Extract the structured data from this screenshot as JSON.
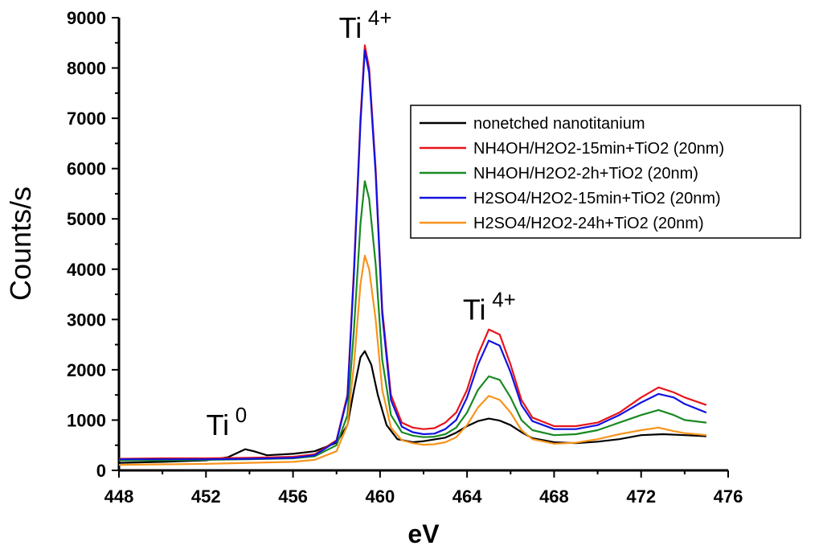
{
  "chart_data": {
    "type": "line",
    "title": "",
    "xlabel": "eV",
    "ylabel": "Counts/s",
    "xlim": [
      448,
      476
    ],
    "ylim": [
      0,
      9000
    ],
    "xticks": [
      448,
      452,
      456,
      460,
      464,
      468,
      472,
      476
    ],
    "yticks": [
      0,
      1000,
      2000,
      3000,
      4000,
      5000,
      6000,
      7000,
      8000,
      9000
    ],
    "legend_position": "top-right",
    "annotations": [
      {
        "id": "ti0",
        "base": "Ti",
        "sup": "0",
        "x": 453.2,
        "y": 700
      },
      {
        "id": "ti4-main",
        "base": "Ti",
        "sup": "4+",
        "x": 459.3,
        "y": 8600
      },
      {
        "id": "ti4-sat",
        "base": "Ti",
        "sup": "4+",
        "x": 465.0,
        "y": 3000
      }
    ],
    "series": [
      {
        "name": "nonetched nanotitanium",
        "color": "#000000",
        "x": [
          448,
          450,
          452,
          453,
          453.8,
          454.2,
          454.8,
          456,
          457,
          458,
          458.5,
          458.8,
          459.1,
          459.3,
          459.6,
          459.9,
          460.3,
          460.8,
          461.5,
          462,
          463,
          463.5,
          464,
          464.5,
          465,
          465.5,
          466,
          466.5,
          467,
          468,
          469,
          470,
          471,
          472,
          473,
          474,
          475
        ],
        "y": [
          150,
          170,
          200,
          260,
          420,
          380,
          300,
          330,
          380,
          550,
          900,
          1600,
          2250,
          2370,
          2100,
          1500,
          900,
          620,
          560,
          580,
          650,
          750,
          880,
          980,
          1030,
          990,
          900,
          760,
          640,
          560,
          540,
          570,
          620,
          700,
          720,
          700,
          680
        ]
      },
      {
        "name": "NH4OH/H2O2-15min+TiO2 (20nm)",
        "color": "#e8141a",
        "x": [
          448,
          450,
          452,
          454,
          456,
          457,
          458,
          458.5,
          458.8,
          459.1,
          459.3,
          459.5,
          459.8,
          460.1,
          460.5,
          461,
          461.5,
          462,
          462.5,
          463,
          463.5,
          464,
          464.5,
          465,
          465.5,
          466,
          466.5,
          467,
          468,
          469,
          470,
          471,
          472,
          472.8,
          473.5,
          474,
          475
        ],
        "y": [
          230,
          240,
          240,
          250,
          270,
          320,
          600,
          1500,
          4000,
          7000,
          8450,
          8000,
          6000,
          3200,
          1500,
          950,
          850,
          820,
          840,
          950,
          1150,
          1600,
          2300,
          2800,
          2700,
          2100,
          1400,
          1050,
          880,
          880,
          950,
          1150,
          1450,
          1650,
          1550,
          1450,
          1300
        ]
      },
      {
        "name": "NH4OH/H2O2-2h+TiO2 (20nm)",
        "color": "#1a8a22",
        "x": [
          448,
          450,
          452,
          454,
          456,
          457,
          458,
          458.5,
          458.8,
          459.1,
          459.3,
          459.5,
          459.8,
          460.1,
          460.5,
          461,
          461.5,
          462,
          462.5,
          463,
          463.5,
          464,
          464.5,
          465,
          465.5,
          466,
          466.5,
          467,
          468,
          469,
          470,
          471,
          472,
          472.8,
          473.5,
          474,
          475
        ],
        "y": [
          200,
          200,
          210,
          220,
          240,
          280,
          500,
          1100,
          2800,
          4900,
          5750,
          5400,
          4100,
          2200,
          1100,
          760,
          690,
          660,
          670,
          720,
          850,
          1150,
          1600,
          1870,
          1800,
          1450,
          1000,
          800,
          700,
          720,
          800,
          950,
          1100,
          1200,
          1100,
          1000,
          950
        ]
      },
      {
        "name": "H2SO4/H2O2-15min+TiO2 (20nm)",
        "color": "#1212e0",
        "x": [
          448,
          450,
          452,
          454,
          456,
          457,
          458,
          458.5,
          458.8,
          459.1,
          459.3,
          459.5,
          459.8,
          460.1,
          460.5,
          461,
          461.5,
          462,
          462.5,
          463,
          463.5,
          464,
          464.5,
          465,
          465.5,
          466,
          466.5,
          467,
          468,
          469,
          470,
          471,
          472,
          472.8,
          473.5,
          474,
          475
        ],
        "y": [
          220,
          220,
          220,
          230,
          250,
          300,
          580,
          1450,
          3900,
          6900,
          8350,
          7900,
          5900,
          3100,
          1400,
          870,
          760,
          720,
          730,
          820,
          1000,
          1450,
          2100,
          2580,
          2480,
          1950,
          1300,
          980,
          820,
          820,
          900,
          1100,
          1350,
          1520,
          1450,
          1320,
          1150
        ]
      },
      {
        "name": "H2SO4/H2O2-24h+TiO2 (20nm)",
        "color": "#f7941d",
        "x": [
          448,
          450,
          452,
          454,
          456,
          457,
          458,
          458.5,
          458.8,
          459.1,
          459.3,
          459.5,
          459.8,
          460.1,
          460.5,
          461,
          461.5,
          462,
          462.5,
          463,
          463.5,
          464,
          464.5,
          465,
          465.5,
          466,
          466.5,
          467,
          468,
          469,
          470,
          471,
          472,
          472.8,
          473.5,
          474,
          475
        ],
        "y": [
          110,
          120,
          130,
          150,
          170,
          210,
          380,
          900,
          2100,
          3700,
          4270,
          4000,
          3000,
          1600,
          850,
          600,
          540,
          510,
          520,
          560,
          660,
          900,
          1250,
          1480,
          1400,
          1150,
          800,
          620,
          530,
          550,
          620,
          720,
          800,
          850,
          780,
          740,
          700
        ]
      }
    ]
  }
}
